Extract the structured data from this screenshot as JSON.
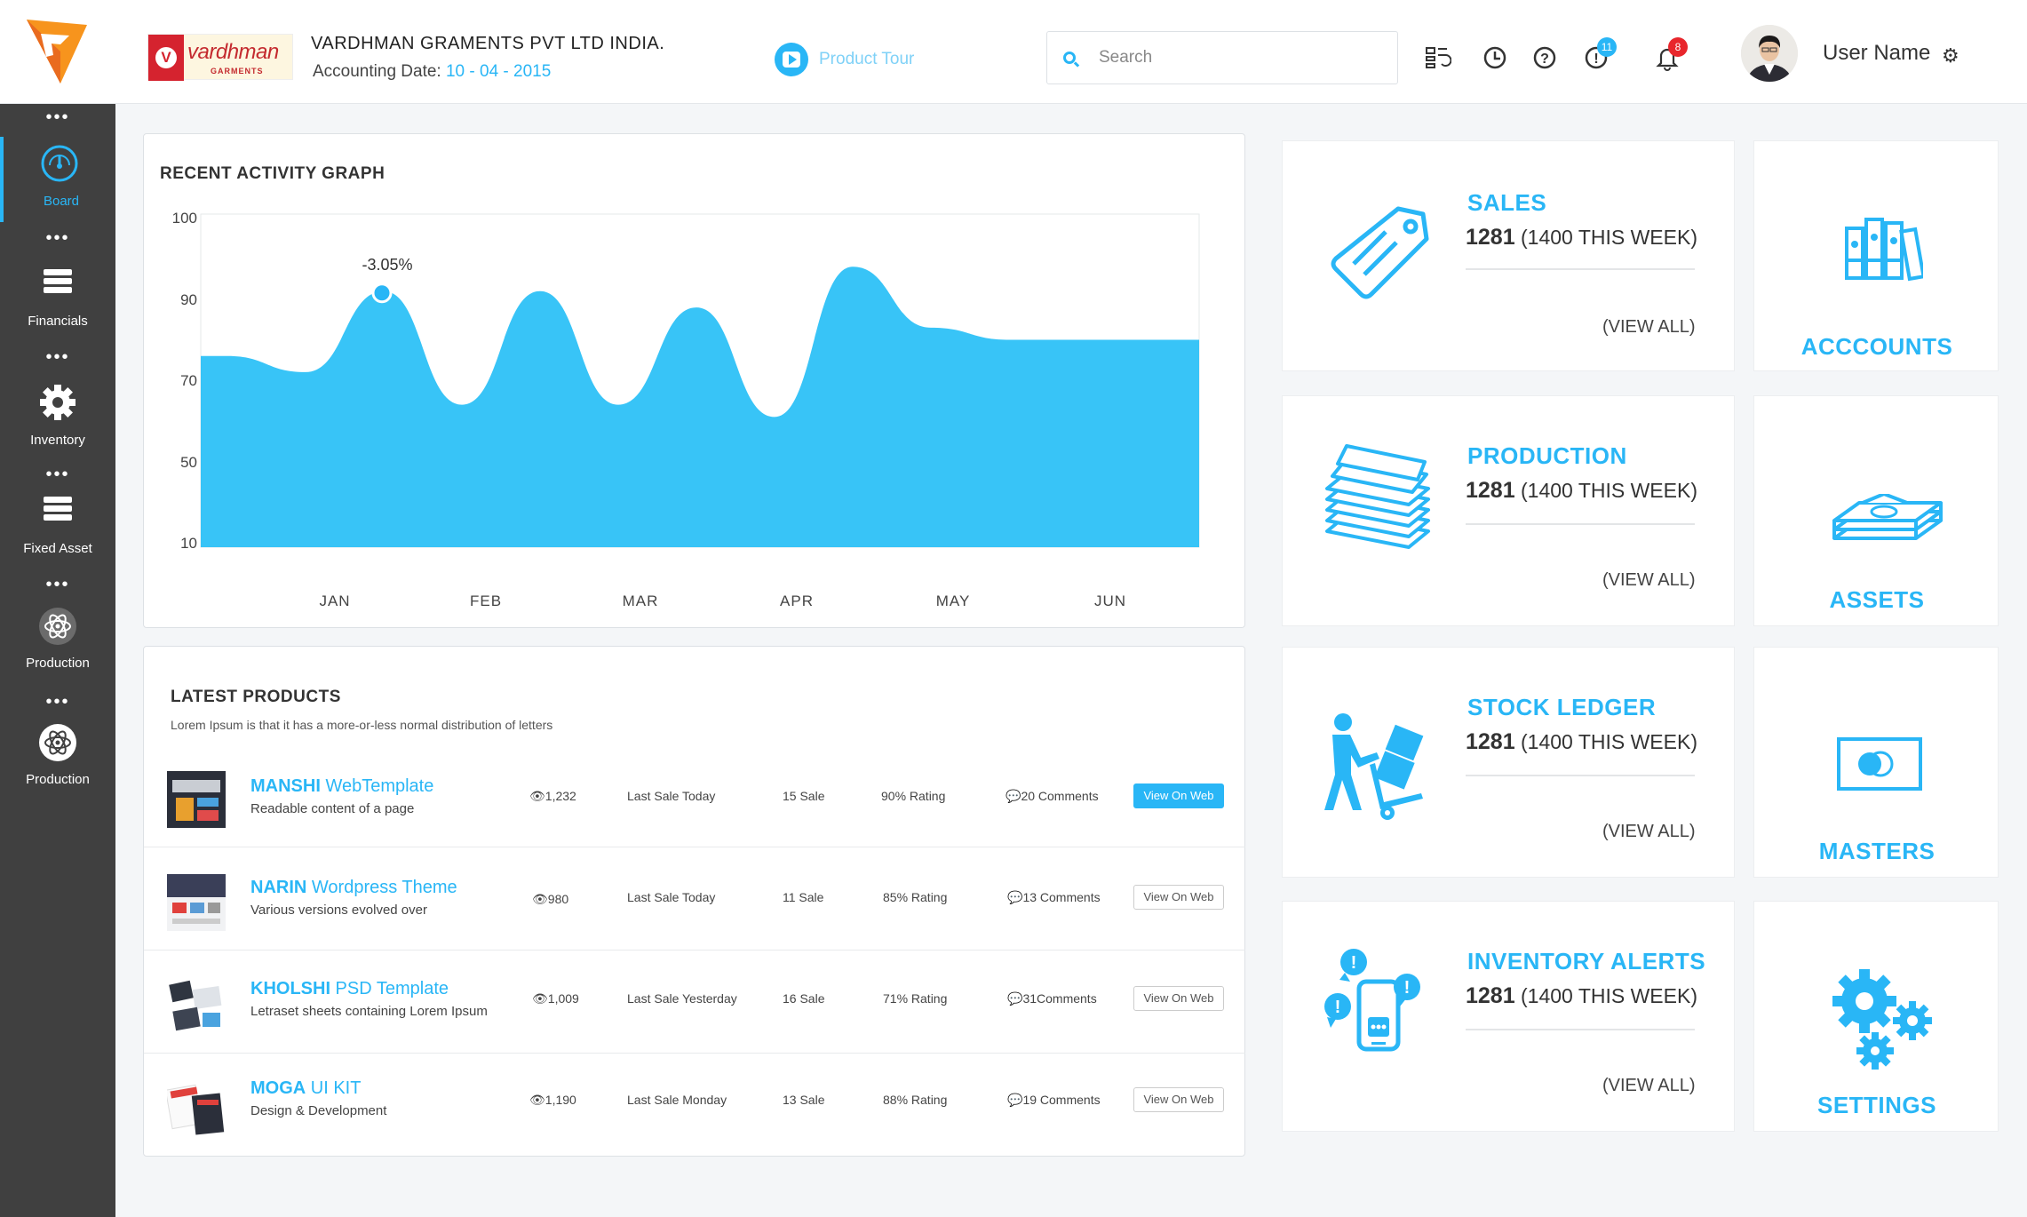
{
  "header": {
    "company_logo_text": "vardhman",
    "company_logo_sub": "GARMENTS",
    "company_name": "VARDHMAN GRAMENTS PVT LTD INDIA.",
    "accounting_date_label": "Accounting Date: ",
    "accounting_date_value": "10 - 04 - 2015",
    "product_tour": "Product Tour",
    "search_placeholder": "Search",
    "alerts_badge": "11",
    "notifications_badge": "8",
    "user_name": "User Name"
  },
  "sidebar": {
    "items": [
      {
        "label": "Board",
        "icon": "dashboard-gauge-icon",
        "active": true
      },
      {
        "label": "Financials",
        "icon": "stack-icon"
      },
      {
        "label": "Inventory",
        "icon": "gear-icon"
      },
      {
        "label": "Fixed Asset",
        "icon": "stack-icon"
      },
      {
        "label": "Production",
        "icon": "atom-icon"
      },
      {
        "label": "Production",
        "icon": "atom-icon"
      }
    ]
  },
  "activity": {
    "title": "RECENT ACTIVITY GRAPH",
    "annotation": "-3.05%"
  },
  "chart_data": {
    "type": "area",
    "title": "RECENT ACTIVITY GRAPH",
    "y_ticks": [
      "100",
      "90",
      "70",
      "50",
      "10"
    ],
    "x_ticks": [
      "JAN",
      "FEB",
      "MAR",
      "APR",
      "MAY",
      "JUN"
    ],
    "series": [
      {
        "x": [
          0,
          0.5,
          1,
          1.5,
          2,
          2.5,
          3,
          3.5,
          4,
          4.5,
          5,
          5.4
        ],
        "y": [
          76,
          72,
          91,
          64,
          91,
          64,
          88,
          61,
          94,
          83,
          80,
          80
        ]
      }
    ],
    "annotation": {
      "text": "-3.05%",
      "x": 1,
      "y": 91
    },
    "color": "#38c4f7"
  },
  "products": {
    "title": "LATEST PRODUCTS",
    "subtitle": "Lorem Ipsum is that it has a more-or-less normal distribution of letters",
    "rows": [
      {
        "brand": "MANSHI",
        "name": " WebTemplate",
        "desc": "Readable content of a page",
        "views": "1,232",
        "last_sale": "Last Sale Today",
        "sales": "15 Sale",
        "rating": "90%  Rating",
        "comments": "20 Comments",
        "button": "View On Web"
      },
      {
        "brand": "NARIN",
        "name": " Wordpress Theme",
        "desc": "Various versions evolved over",
        "views": "980",
        "last_sale": "Last Sale Today",
        "sales": "11 Sale",
        "rating": "85%  Rating",
        "comments": "13 Comments",
        "button": "View On Web"
      },
      {
        "brand": "KHOLSHI",
        "name": "  PSD Template",
        "desc": "Letraset sheets containing Lorem Ipsum",
        "views": "1,009",
        "last_sale": "Last Sale Yesterday",
        "sales": "16 Sale",
        "rating": "71%  Rating",
        "comments": "31Comments",
        "button": "View On Web"
      },
      {
        "brand": "MOGA",
        "name": " UI KIT",
        "desc": "Design & Development",
        "views": "1,190",
        "last_sale": "Last Sale Monday",
        "sales": "13 Sale",
        "rating": "88%  Rating",
        "comments": "19 Comments",
        "button": "View On Web"
      }
    ]
  },
  "cards": [
    {
      "title": "SALES",
      "count": "1281",
      "week": " (1400 THIS WEEK)",
      "view": "(VIEW ALL)"
    },
    {
      "title": "PRODUCTION",
      "count": "1281",
      "week": " (1400 THIS WEEK)",
      "view": "(VIEW ALL)"
    },
    {
      "title": "STOCK LEDGER",
      "count": "1281",
      "week": " (1400 THIS WEEK)",
      "view": "(VIEW ALL)"
    },
    {
      "title": "INVENTORY ALERTS",
      "count": "1281",
      "week": " (1400 THIS WEEK)",
      "view": "(VIEW ALL)"
    }
  ],
  "tiles": [
    {
      "title": "ACCCOUNTS"
    },
    {
      "title": "ASSETS"
    },
    {
      "title": "MASTERS"
    },
    {
      "title": "SETTINGS"
    }
  ]
}
